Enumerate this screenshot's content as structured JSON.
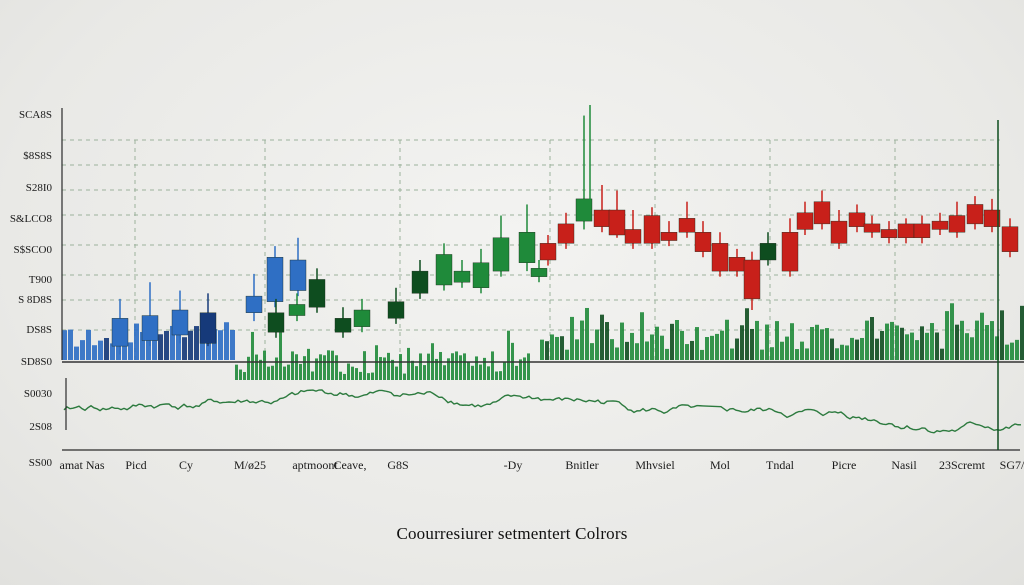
{
  "caption": "Coourresiurer setmentert Colrors",
  "colors": {
    "blue": "#2f6fc4",
    "dark_blue": "#163a7a",
    "green": "#1f8a3a",
    "dark_green": "#0e4d1f",
    "red": "#c8201a",
    "line": "#2c7a3e"
  },
  "chart_data": {
    "type": "bar",
    "title": "",
    "y_ticks_upper": [
      "SCA8S",
      "$8S8S",
      "S28I0",
      "S&LCO8",
      "S$SCO0",
      "T900",
      "S 8D8S",
      "DS8S",
      "SD8S0"
    ],
    "y_ticks_lower": [
      "S0030",
      "2S08",
      "SS00"
    ],
    "x_ticks": [
      "amat Nas",
      "Picd",
      "Cy",
      "M/ø25",
      "aptmoont",
      "Ceave,",
      "G8S",
      "-Dy",
      "Bnitler",
      "Mhvsiel",
      "Mol",
      "Tndal",
      "Picre",
      "Nasil",
      "23Scremt",
      "SG7/"
    ],
    "candles": [
      {
        "x": 120,
        "open": 8.5,
        "close": 9.5,
        "high": 10.2,
        "low": 8.2,
        "color": "blue"
      },
      {
        "x": 150,
        "open": 8.7,
        "close": 9.6,
        "high": 10.8,
        "low": 8.5,
        "color": "blue"
      },
      {
        "x": 180,
        "open": 8.9,
        "close": 9.8,
        "high": 10.5,
        "low": 8.6,
        "color": "blue"
      },
      {
        "x": 208,
        "open": 8.6,
        "close": 9.7,
        "high": 10.4,
        "low": 8.5,
        "color": "dark_blue"
      },
      {
        "x": 254,
        "open": 9.7,
        "close": 10.3,
        "high": 11.1,
        "low": 9.4,
        "color": "blue"
      },
      {
        "x": 275,
        "open": 10.1,
        "close": 11.7,
        "high": 12.1,
        "low": 9.9,
        "color": "blue"
      },
      {
        "x": 298,
        "open": 10.5,
        "close": 11.6,
        "high": 12.4,
        "low": 10.3,
        "color": "blue"
      },
      {
        "x": 276,
        "open": 9.0,
        "close": 9.7,
        "high": 10.2,
        "low": 8.8,
        "color": "dark_green"
      },
      {
        "x": 297,
        "open": 9.6,
        "close": 10.0,
        "high": 10.4,
        "low": 9.4,
        "color": "green"
      },
      {
        "x": 317,
        "open": 9.9,
        "close": 10.9,
        "high": 11.3,
        "low": 9.7,
        "color": "dark_green"
      },
      {
        "x": 343,
        "open": 9.0,
        "close": 9.5,
        "high": 9.9,
        "low": 8.8,
        "color": "dark_green"
      },
      {
        "x": 362,
        "open": 9.2,
        "close": 9.8,
        "high": 10.2,
        "low": 9.0,
        "color": "green"
      },
      {
        "x": 396,
        "open": 9.5,
        "close": 10.1,
        "high": 10.6,
        "low": 9.3,
        "color": "dark_green"
      },
      {
        "x": 420,
        "open": 10.4,
        "close": 11.2,
        "high": 11.6,
        "low": 10.2,
        "color": "dark_green"
      },
      {
        "x": 444,
        "open": 10.7,
        "close": 11.8,
        "high": 12.2,
        "low": 10.5,
        "color": "green"
      },
      {
        "x": 462,
        "open": 10.8,
        "close": 11.2,
        "high": 11.6,
        "low": 10.6,
        "color": "green"
      },
      {
        "x": 481,
        "open": 10.6,
        "close": 11.5,
        "high": 12.0,
        "low": 10.4,
        "color": "green"
      },
      {
        "x": 501,
        "open": 11.2,
        "close": 12.4,
        "high": 13.2,
        "low": 11.0,
        "color": "green"
      },
      {
        "x": 527,
        "open": 11.5,
        "close": 12.6,
        "high": 13.6,
        "low": 11.2,
        "color": "green"
      },
      {
        "x": 539,
        "open": 11.0,
        "close": 11.3,
        "high": 11.6,
        "low": 10.8,
        "color": "green"
      },
      {
        "x": 548,
        "open": 11.6,
        "close": 12.2,
        "high": 12.5,
        "low": 11.4,
        "color": "red"
      },
      {
        "x": 566,
        "open": 12.2,
        "close": 12.9,
        "high": 13.3,
        "low": 12.0,
        "color": "red"
      },
      {
        "x": 584,
        "open": 13.0,
        "close": 13.8,
        "high": 16.8,
        "low": 12.7,
        "color": "green"
      },
      {
        "x": 602,
        "open": 12.8,
        "close": 13.4,
        "high": 14.3,
        "low": 12.6,
        "color": "red"
      },
      {
        "x": 617,
        "open": 12.5,
        "close": 13.4,
        "high": 14.1,
        "low": 12.4,
        "color": "red"
      },
      {
        "x": 633,
        "open": 12.2,
        "close": 12.7,
        "high": 13.4,
        "low": 12.0,
        "color": "red"
      },
      {
        "x": 652,
        "open": 12.2,
        "close": 13.2,
        "high": 13.5,
        "low": 12.0,
        "color": "red"
      },
      {
        "x": 669,
        "open": 12.3,
        "close": 12.6,
        "high": 13.0,
        "low": 12.1,
        "color": "red"
      },
      {
        "x": 687,
        "open": 12.6,
        "close": 13.1,
        "high": 13.7,
        "low": 12.4,
        "color": "red"
      },
      {
        "x": 703,
        "open": 11.9,
        "close": 12.6,
        "high": 13.0,
        "low": 11.7,
        "color": "red"
      },
      {
        "x": 720,
        "open": 11.2,
        "close": 12.2,
        "high": 12.6,
        "low": 11.0,
        "color": "red"
      },
      {
        "x": 737,
        "open": 11.2,
        "close": 11.7,
        "high": 12.0,
        "low": 11.0,
        "color": "red"
      },
      {
        "x": 752,
        "open": 10.2,
        "close": 11.6,
        "high": 11.9,
        "low": 9.8,
        "color": "red"
      },
      {
        "x": 768,
        "open": 11.6,
        "close": 12.2,
        "high": 12.6,
        "low": 11.4,
        "color": "dark_green"
      },
      {
        "x": 790,
        "open": 11.2,
        "close": 12.6,
        "high": 13.1,
        "low": 11.0,
        "color": "red"
      },
      {
        "x": 805,
        "open": 12.7,
        "close": 13.3,
        "high": 13.7,
        "low": 12.5,
        "color": "red"
      },
      {
        "x": 822,
        "open": 12.9,
        "close": 13.7,
        "high": 14.1,
        "low": 12.7,
        "color": "red"
      },
      {
        "x": 839,
        "open": 12.2,
        "close": 13.0,
        "high": 13.4,
        "low": 12.0,
        "color": "red"
      },
      {
        "x": 857,
        "open": 12.8,
        "close": 13.3,
        "high": 13.6,
        "low": 12.6,
        "color": "red"
      },
      {
        "x": 872,
        "open": 12.6,
        "close": 12.9,
        "high": 13.2,
        "low": 12.4,
        "color": "red"
      },
      {
        "x": 889,
        "open": 12.4,
        "close": 12.7,
        "high": 13.0,
        "low": 12.2,
        "color": "red"
      },
      {
        "x": 906,
        "open": 12.4,
        "close": 12.9,
        "high": 13.1,
        "low": 12.2,
        "color": "red"
      },
      {
        "x": 922,
        "open": 12.4,
        "close": 12.9,
        "high": 13.2,
        "low": 12.2,
        "color": "red"
      },
      {
        "x": 940,
        "open": 12.7,
        "close": 13.0,
        "high": 13.3,
        "low": 12.5,
        "color": "red"
      },
      {
        "x": 957,
        "open": 12.6,
        "close": 13.2,
        "high": 13.7,
        "low": 12.4,
        "color": "red"
      },
      {
        "x": 975,
        "open": 12.9,
        "close": 13.6,
        "high": 13.9,
        "low": 12.7,
        "color": "red"
      },
      {
        "x": 992,
        "open": 12.8,
        "close": 13.4,
        "high": 13.8,
        "low": 12.6,
        "color": "red"
      },
      {
        "x": 1010,
        "open": 11.9,
        "close": 12.8,
        "high": 13.1,
        "low": 11.7,
        "color": "red"
      }
    ],
    "volume_seed": 17,
    "line_seed": 41,
    "grid": true
  }
}
